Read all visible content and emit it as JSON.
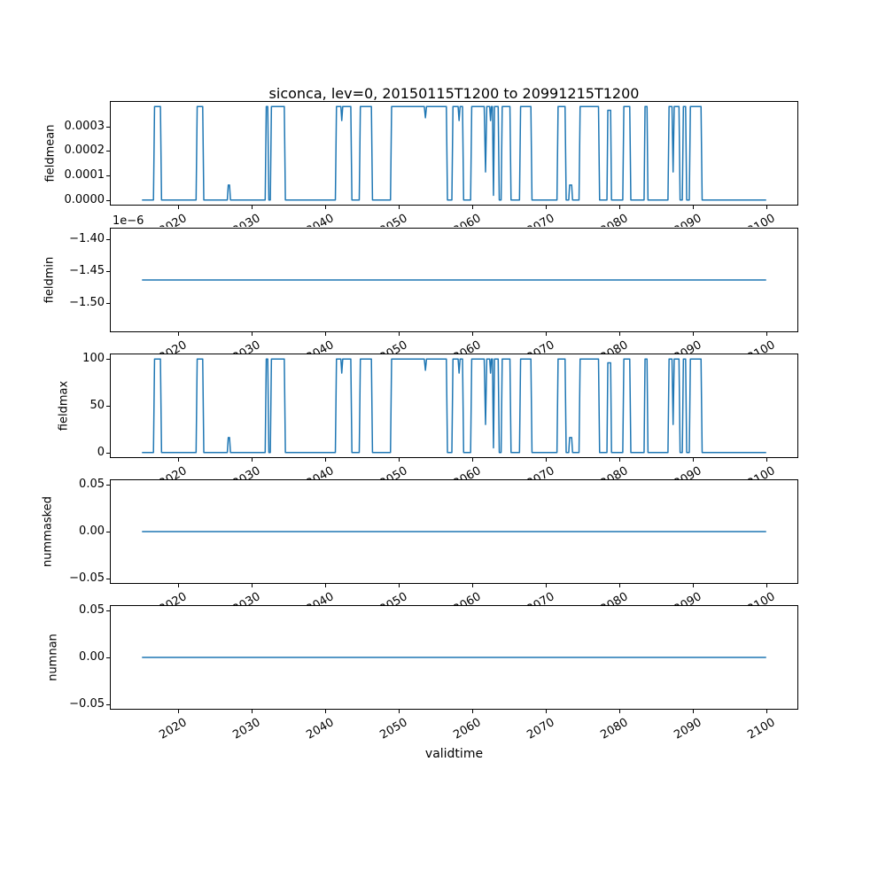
{
  "chart_data": {
    "type": "line",
    "title": "siconca, lev=0, 20150115T1200 to 20991215T1200",
    "xlabel": "validtime",
    "line_color": "#1f77b4",
    "background_color": "#ffffff",
    "axis_color": "#000000",
    "grid": false,
    "legend": false,
    "xlim": [
      2010.79,
      2104.21
    ],
    "x_data_range": [
      2015.04,
      2099.96
    ],
    "xticks": [
      {
        "v": 2020,
        "label": "2020"
      },
      {
        "v": 2030,
        "label": "2030"
      },
      {
        "v": 2040,
        "label": "2040"
      },
      {
        "v": 2050,
        "label": "2050"
      },
      {
        "v": 2060,
        "label": "2060"
      },
      {
        "v": 2070,
        "label": "2070"
      },
      {
        "v": 2080,
        "label": "2080"
      },
      {
        "v": 2090,
        "label": "2090"
      },
      {
        "v": 2100,
        "label": "2100"
      }
    ],
    "xtick_rotation_deg": 30,
    "panels": [
      {
        "ylabel": "fieldmean",
        "ylim": [
          -1.9e-05,
          0.000399
        ],
        "yticks": [
          {
            "v": 0.0003,
            "label": "0.0003"
          },
          {
            "v": 0.0002,
            "label": "0.0002"
          },
          {
            "v": 0.0001,
            "label": "0.0001"
          },
          {
            "v": 0.0,
            "label": "0.0000"
          }
        ],
        "series": {
          "kind": "wave",
          "scale": 0.00038,
          "max_value": 0.00038,
          "min_value": 0.0
        }
      },
      {
        "ylabel": "fieldmin",
        "offset_text": "1e−6",
        "ylim": [
          -1.545e-06,
          -1.384e-06
        ],
        "yticks": [
          {
            "v": -1.4e-06,
            "label": "−1.40"
          },
          {
            "v": -1.45e-06,
            "label": "−1.45"
          },
          {
            "v": -1.5e-06,
            "label": "−1.50"
          }
        ],
        "series": {
          "kind": "const",
          "value": -1.4645e-06
        }
      },
      {
        "ylabel": "fieldmax",
        "ylim": [
          -5,
          105
        ],
        "yticks": [
          {
            "v": 100,
            "label": "100"
          },
          {
            "v": 50,
            "label": "50"
          },
          {
            "v": 0,
            "label": "0"
          }
        ],
        "series": {
          "kind": "wave",
          "scale": 100,
          "max_value": 100,
          "min_value": 0
        }
      },
      {
        "ylabel": "nummasked",
        "ylim": [
          -0.055,
          0.055
        ],
        "yticks": [
          {
            "v": 0.05,
            "label": "0.05"
          },
          {
            "v": 0.0,
            "label": "0.00"
          },
          {
            "v": -0.05,
            "label": "−0.05"
          }
        ],
        "series": {
          "kind": "const",
          "value": 0
        }
      },
      {
        "ylabel": "numnan",
        "ylim": [
          -0.055,
          0.055
        ],
        "yticks": [
          {
            "v": 0.05,
            "label": "0.05"
          },
          {
            "v": 0.0,
            "label": "0.00"
          },
          {
            "v": -0.05,
            "label": "−0.05"
          }
        ],
        "series": {
          "kind": "const",
          "value": 0
        }
      }
    ],
    "waveform_points": [
      [
        2015.04,
        0
      ],
      [
        2016.6,
        0
      ],
      [
        2016.75,
        1
      ],
      [
        2017.55,
        1
      ],
      [
        2017.7,
        0
      ],
      [
        2022.4,
        0
      ],
      [
        2022.55,
        1
      ],
      [
        2023.3,
        1
      ],
      [
        2023.45,
        0
      ],
      [
        2026.65,
        0
      ],
      [
        2026.78,
        0.16
      ],
      [
        2026.95,
        0.16
      ],
      [
        2027.08,
        0
      ],
      [
        2031.8,
        0
      ],
      [
        2031.95,
        1
      ],
      [
        2032.15,
        1
      ],
      [
        2032.3,
        0
      ],
      [
        2032.5,
        0
      ],
      [
        2032.65,
        1
      ],
      [
        2034.4,
        1
      ],
      [
        2034.55,
        0
      ],
      [
        2041.35,
        0
      ],
      [
        2041.5,
        1
      ],
      [
        2042.1,
        1
      ],
      [
        2042.22,
        0.85
      ],
      [
        2042.35,
        1
      ],
      [
        2043.45,
        1
      ],
      [
        2043.6,
        0
      ],
      [
        2044.6,
        0
      ],
      [
        2044.75,
        1
      ],
      [
        2046.25,
        1
      ],
      [
        2046.4,
        0
      ],
      [
        2048.85,
        0
      ],
      [
        2049.0,
        1
      ],
      [
        2053.45,
        1
      ],
      [
        2053.6,
        0.88
      ],
      [
        2053.75,
        1
      ],
      [
        2056.45,
        1
      ],
      [
        2056.6,
        0
      ],
      [
        2057.2,
        0
      ],
      [
        2057.35,
        1
      ],
      [
        2058.05,
        1
      ],
      [
        2058.18,
        0.85
      ],
      [
        2058.32,
        1
      ],
      [
        2058.65,
        1
      ],
      [
        2058.8,
        0
      ],
      [
        2059.75,
        0
      ],
      [
        2059.9,
        1
      ],
      [
        2061.6,
        1
      ],
      [
        2061.78,
        0.3
      ],
      [
        2061.95,
        1
      ],
      [
        2062.35,
        1
      ],
      [
        2062.46,
        0.85
      ],
      [
        2062.58,
        1
      ],
      [
        2062.72,
        1
      ],
      [
        2062.86,
        0.05
      ],
      [
        2063.0,
        1
      ],
      [
        2063.5,
        1
      ],
      [
        2063.65,
        0
      ],
      [
        2063.9,
        0
      ],
      [
        2064.05,
        1
      ],
      [
        2065.1,
        1
      ],
      [
        2065.25,
        0
      ],
      [
        2066.4,
        0
      ],
      [
        2066.55,
        1
      ],
      [
        2067.95,
        1
      ],
      [
        2068.1,
        0
      ],
      [
        2071.5,
        0
      ],
      [
        2071.65,
        1
      ],
      [
        2072.6,
        1
      ],
      [
        2072.75,
        0
      ],
      [
        2073.1,
        0
      ],
      [
        2073.22,
        0.16
      ],
      [
        2073.5,
        0.16
      ],
      [
        2073.62,
        0
      ],
      [
        2074.5,
        0
      ],
      [
        2074.65,
        1
      ],
      [
        2077.15,
        1
      ],
      [
        2077.3,
        0
      ],
      [
        2078.3,
        0
      ],
      [
        2078.42,
        0.96
      ],
      [
        2078.8,
        0.96
      ],
      [
        2078.92,
        0
      ],
      [
        2080.45,
        0
      ],
      [
        2080.6,
        1
      ],
      [
        2081.4,
        1
      ],
      [
        2081.55,
        0
      ],
      [
        2083.35,
        0
      ],
      [
        2083.48,
        1
      ],
      [
        2083.75,
        1
      ],
      [
        2083.88,
        0
      ],
      [
        2086.6,
        0
      ],
      [
        2086.75,
        1
      ],
      [
        2087.15,
        1
      ],
      [
        2087.3,
        0.3
      ],
      [
        2087.45,
        1
      ],
      [
        2088.1,
        1
      ],
      [
        2088.25,
        0
      ],
      [
        2088.55,
        0
      ],
      [
        2088.7,
        1
      ],
      [
        2089.0,
        1
      ],
      [
        2089.15,
        0
      ],
      [
        2089.5,
        0
      ],
      [
        2089.65,
        1
      ],
      [
        2091.1,
        1
      ],
      [
        2091.25,
        0
      ],
      [
        2099.96,
        0
      ]
    ]
  }
}
